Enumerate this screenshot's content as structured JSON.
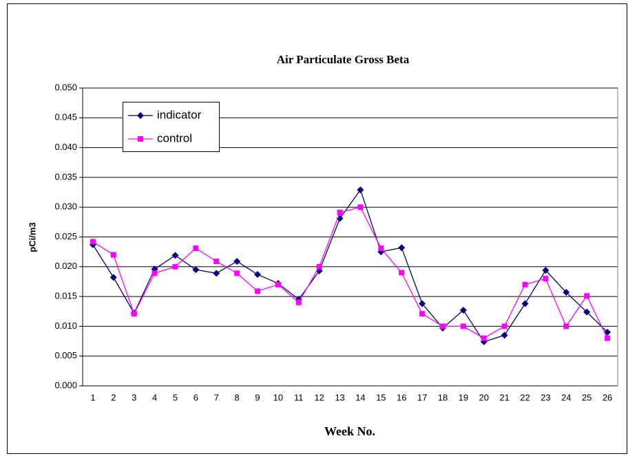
{
  "chart_data": {
    "type": "line",
    "title": "Air Particulate Gross Beta",
    "xlabel": "Week No.",
    "ylabel": "pCi/m3",
    "categories": [
      "1",
      "2",
      "3",
      "4",
      "5",
      "6",
      "7",
      "8",
      "9",
      "10",
      "11",
      "12",
      "13",
      "14",
      "15",
      "16",
      "17",
      "18",
      "19",
      "20",
      "21",
      "22",
      "23",
      "24",
      "25",
      "26"
    ],
    "series": [
      {
        "name": "indicator",
        "color": "#000080",
        "marker": "diamond",
        "values": [
          0.0237,
          0.0182,
          0.0122,
          0.0196,
          0.0219,
          0.0195,
          0.0189,
          0.0209,
          0.0187,
          0.0172,
          0.0145,
          0.0193,
          0.0281,
          0.0329,
          0.0225,
          0.0232,
          0.0138,
          0.0097,
          0.0127,
          0.0074,
          0.0085,
          0.0138,
          0.0194,
          0.0157,
          0.0124,
          0.009
        ]
      },
      {
        "name": "control",
        "color": "#ff00ff",
        "marker": "square",
        "values": [
          0.0242,
          0.022,
          0.0121,
          0.0189,
          0.02,
          0.0231,
          0.0209,
          0.0189,
          0.0159,
          0.017,
          0.014,
          0.02,
          0.0291,
          0.03,
          0.0231,
          0.019,
          0.0121,
          0.01,
          0.01,
          0.008,
          0.01,
          0.017,
          0.018,
          0.01,
          0.0151,
          0.008
        ]
      }
    ],
    "ylim": [
      0,
      0.05
    ],
    "yticks": [
      {
        "value": 0,
        "label": "0.000"
      },
      {
        "value": 0.005,
        "label": "0.005"
      },
      {
        "value": 0.01,
        "label": "0.010"
      },
      {
        "value": 0.015,
        "label": "0.015"
      },
      {
        "value": 0.02,
        "label": "0.020"
      },
      {
        "value": 0.025,
        "label": "0.025"
      },
      {
        "value": 0.03,
        "label": "0.030"
      },
      {
        "value": 0.035,
        "label": "0.035"
      },
      {
        "value": 0.04,
        "label": "0.040"
      },
      {
        "value": 0.045,
        "label": "0.045"
      },
      {
        "value": 0.05,
        "label": "0.050"
      }
    ],
    "grid": true,
    "legend": "upper left"
  }
}
